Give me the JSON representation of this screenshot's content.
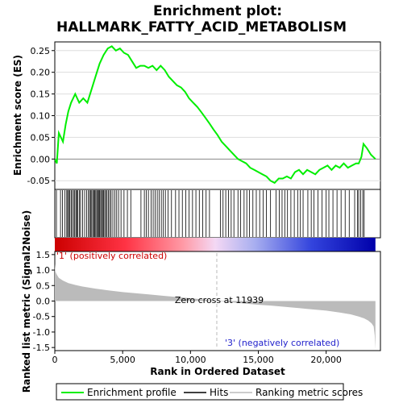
{
  "title_line1": "Enrichment plot:",
  "title_line2": "HALLMARK_FATTY_ACID_METABOLISM",
  "chart_data": {
    "type": "line",
    "x_range": [
      0,
      24000
    ],
    "x_max_rank": 23630,
    "top_panel": {
      "ylabel": "Enrichment score (ES)",
      "ylim": [
        -0.07,
        0.27
      ],
      "yticks": [
        -0.05,
        0.0,
        0.05,
        0.1,
        0.15,
        0.2,
        0.25
      ],
      "ytick_labels": [
        "-0.05",
        "0.00",
        "0.05",
        "0.10",
        "0.15",
        "0.20",
        "0.25"
      ],
      "series": [
        {
          "name": "Enrichment profile",
          "color": "#00ee00",
          "x": [
            0,
            150,
            300,
            600,
            800,
            1000,
            1200,
            1500,
            1800,
            2100,
            2400,
            2700,
            3000,
            3300,
            3600,
            3900,
            4200,
            4500,
            4800,
            5100,
            5400,
            5700,
            6000,
            6300,
            6600,
            6900,
            7200,
            7500,
            7800,
            8100,
            8400,
            8700,
            9000,
            9300,
            9600,
            9900,
            10200,
            10500,
            10800,
            11100,
            11400,
            11700,
            12000,
            12300,
            12600,
            12900,
            13200,
            13500,
            13800,
            14100,
            14400,
            14700,
            15000,
            15300,
            15600,
            15900,
            16200,
            16500,
            16800,
            17100,
            17400,
            17700,
            18000,
            18300,
            18600,
            18900,
            19200,
            19500,
            19800,
            20100,
            20400,
            20700,
            21000,
            21300,
            21600,
            21900,
            22200,
            22400,
            22600,
            22750,
            23000,
            23300,
            23630
          ],
          "y": [
            0.0,
            -0.01,
            0.06,
            0.04,
            0.08,
            0.11,
            0.13,
            0.15,
            0.13,
            0.14,
            0.13,
            0.16,
            0.19,
            0.22,
            0.24,
            0.255,
            0.26,
            0.25,
            0.255,
            0.245,
            0.24,
            0.225,
            0.21,
            0.215,
            0.215,
            0.21,
            0.215,
            0.205,
            0.215,
            0.205,
            0.19,
            0.18,
            0.17,
            0.165,
            0.155,
            0.14,
            0.13,
            0.12,
            0.108,
            0.095,
            0.082,
            0.068,
            0.055,
            0.04,
            0.03,
            0.02,
            0.01,
            0.0,
            -0.005,
            -0.01,
            -0.02,
            -0.025,
            -0.03,
            -0.035,
            -0.04,
            -0.05,
            -0.055,
            -0.045,
            -0.045,
            -0.04,
            -0.045,
            -0.03,
            -0.025,
            -0.035,
            -0.025,
            -0.03,
            -0.035,
            -0.025,
            -0.02,
            -0.015,
            -0.025,
            -0.015,
            -0.02,
            -0.01,
            -0.02,
            -0.015,
            -0.01,
            -0.01,
            0.005,
            0.035,
            0.025,
            0.01,
            0.0
          ]
        }
      ]
    },
    "hits_panel": {
      "name": "Hits",
      "hit_ranks": [
        120,
        420,
        560,
        740,
        880,
        950,
        1020,
        1100,
        1200,
        1280,
        1390,
        1470,
        1560,
        1620,
        1700,
        1820,
        1900,
        2050,
        2200,
        2350,
        2480,
        2560,
        2650,
        2720,
        2800,
        2880,
        2950,
        3020,
        3100,
        3160,
        3230,
        3300,
        3380,
        3450,
        3520,
        3600,
        3680,
        3760,
        3850,
        3950,
        4050,
        4150,
        4280,
        4420,
        4560,
        4700,
        4880,
        5100,
        5350,
        5600,
        6350,
        6600,
        6750,
        6900,
        7100,
        7250,
        7400,
        7550,
        7700,
        7850,
        8000,
        8150,
        8350,
        8600,
        8900,
        9150,
        9400,
        9650,
        9900,
        10150,
        10400,
        10650,
        10900,
        11150,
        11400,
        12200,
        12400,
        12600,
        12800,
        13000,
        13200,
        13500,
        13700,
        13950,
        14150,
        14350,
        14600,
        14850,
        15100,
        15350,
        15600,
        15900,
        16300,
        16550,
        16750,
        16950,
        17150,
        17400,
        17650,
        17900,
        18100,
        18300,
        18650,
        18900,
        19100,
        19400,
        19700,
        20000,
        20200,
        20500,
        20800,
        21100,
        21400,
        21700,
        22100,
        22300,
        22400,
        22550,
        22700,
        22800
      ]
    },
    "rank_bar": {
      "gradient_stops": [
        {
          "offset": 0.0,
          "color": "#cc0000"
        },
        {
          "offset": 0.22,
          "color": "#ff3344"
        },
        {
          "offset": 0.4,
          "color": "#ff9aa6"
        },
        {
          "offset": 0.5,
          "color": "#f4d8f4"
        },
        {
          "offset": 0.62,
          "color": "#aab0f0"
        },
        {
          "offset": 0.8,
          "color": "#3344dd"
        },
        {
          "offset": 1.0,
          "color": "#0000aa"
        }
      ]
    },
    "bottom_panel": {
      "ylabel": "Ranked list metric (Signal2Noise)",
      "xlabel": "Rank in Ordered Dataset",
      "ylim": [
        -1.6,
        1.6
      ],
      "yticks": [
        -1.5,
        -1.0,
        -0.5,
        0.0,
        0.5,
        1.0,
        1.5
      ],
      "ytick_labels": [
        "-1.5",
        "-1.0",
        "-0.5",
        "0.0",
        "0.5",
        "1.0",
        "1.5"
      ],
      "xticks": [
        0,
        5000,
        10000,
        15000,
        20000
      ],
      "xtick_labels": [
        "0",
        "5,000",
        "10,000",
        "15,000",
        "20,000"
      ],
      "zero_cross": 11939,
      "zero_cross_label": "Zero cross at 11939",
      "pos_label": "'1' (positively correlated)",
      "neg_label": "'3' (negatively correlated)",
      "metric_x": [
        0,
        50,
        150,
        300,
        600,
        1000,
        1500,
        2000,
        3000,
        4000,
        5000,
        6000,
        7000,
        8000,
        9000,
        10000,
        11000,
        11939,
        13000,
        14000,
        15000,
        16000,
        17000,
        18000,
        19000,
        20000,
        21000,
        21800,
        22400,
        22800,
        23100,
        23350,
        23500,
        23580,
        23630
      ],
      "metric_y": [
        1.2,
        0.95,
        0.85,
        0.75,
        0.66,
        0.58,
        0.52,
        0.47,
        0.4,
        0.34,
        0.29,
        0.25,
        0.21,
        0.17,
        0.13,
        0.09,
        0.05,
        0.0,
        -0.04,
        -0.08,
        -0.12,
        -0.15,
        -0.19,
        -0.23,
        -0.27,
        -0.31,
        -0.37,
        -0.43,
        -0.5,
        -0.56,
        -0.63,
        -0.72,
        -0.82,
        -1.1,
        -1.55
      ]
    },
    "legend": [
      {
        "label": "Enrichment profile",
        "color": "#00ee00",
        "kind": "line"
      },
      {
        "label": "Hits",
        "color": "#000000",
        "kind": "line"
      },
      {
        "label": "Ranking metric scores",
        "color": "#bbbbbb",
        "kind": "line"
      }
    ]
  }
}
